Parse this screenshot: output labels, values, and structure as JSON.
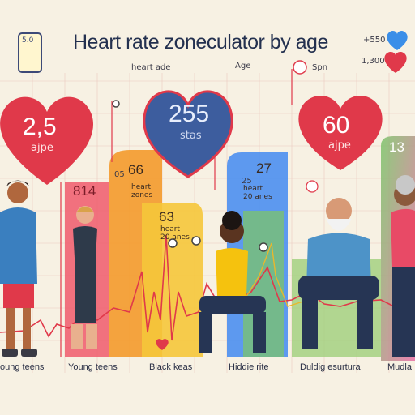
{
  "title": "Heart rate zoneculator by age",
  "phone": {
    "value": "5.0"
  },
  "top_right": {
    "value1": "+550",
    "value2": "1,300"
  },
  "legend": {
    "item1": "heart ade",
    "item2": "Age",
    "item3": "Spn"
  },
  "hearts": {
    "left": {
      "value": "2,5",
      "label": "ajpe"
    },
    "center": {
      "value": "255",
      "label": "stas"
    },
    "right": {
      "value": "60",
      "label": "ajpe"
    },
    "far_right": {
      "value": "13"
    }
  },
  "zones": {
    "zone_a": {
      "value": "814",
      "tick": ""
    },
    "zone_b": {
      "value": "66",
      "tick": "05",
      "sub1": "heart",
      "sub2": "zones"
    },
    "zone_c": {
      "value": "63",
      "sub1": "heart",
      "sub2": "20 anes"
    },
    "zone_d": {
      "value": "27",
      "tick": "25",
      "sub1": "heart",
      "sub2": "20 anes"
    }
  },
  "bottom_labels": [
    "oung teens",
    "Young teens",
    "Black keas",
    "Hiddie rite",
    "Duldig esurtura",
    "Mudla"
  ],
  "colors": {
    "heart_red": "#e0394a",
    "heart_blue": "#3d5d9e",
    "orange": "#f39a2b",
    "yellow": "#f5c63a",
    "pink": "#f0506a",
    "blue": "#4b8ff0",
    "green": "#7cc46a",
    "background": "#f7f1e3"
  },
  "icons": [
    "phone-icon",
    "blue-heart-icon",
    "red-heart-icon",
    "small-heart-icon"
  ]
}
